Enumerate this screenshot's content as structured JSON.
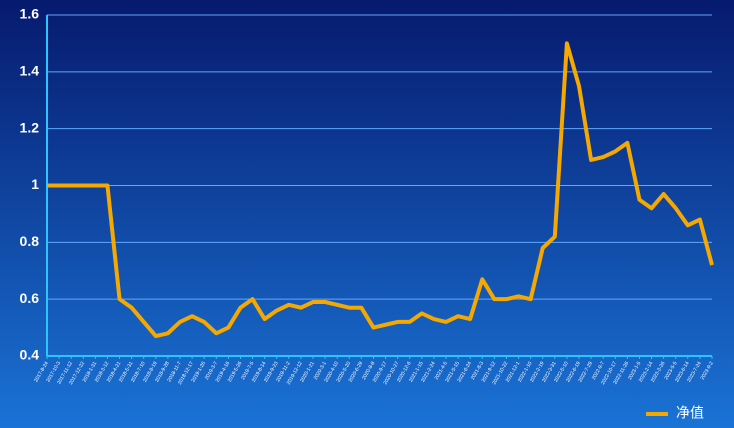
{
  "chart_data": {
    "type": "line",
    "categories": [
      "2017-8-24",
      "2017-10-3",
      "2017-11-12",
      "2017-12-22",
      "2018-1-31",
      "2018-3-12",
      "2018-4-21",
      "2018-5-31",
      "2018-7-10",
      "2018-8-19",
      "2018-9-28",
      "2018-11-7",
      "2018-12-17",
      "2019-1-26",
      "2019-3-7",
      "2019-4-16",
      "2019-5-26",
      "2019-7-5",
      "2019-8-14",
      "2019-9-23",
      "2019-11-2",
      "2019-12-12",
      "2020-1-21",
      "2020-3-1",
      "2020-4-10",
      "2020-5-20",
      "2020-6-29",
      "2020-8-8",
      "2020-9-17",
      "2020-10-27",
      "2020-12-6",
      "2021-1-15",
      "2021-2-24",
      "2021-4-5",
      "2021-5-15",
      "2021-6-24",
      "2021-8-3",
      "2021-9-12",
      "2021-10-22",
      "2021-12-1",
      "2022-1-10",
      "2022-2-19",
      "2022-3-31",
      "2022-5-10",
      "2022-6-19",
      "2022-7-29",
      "2022-9-7",
      "2022-10-17",
      "2022-11-26",
      "2023-1-5",
      "2023-2-14",
      "2023-3-26",
      "2023-5-5",
      "2023-6-14",
      "2023-7-24",
      "2023-9-2"
    ],
    "series": [
      {
        "name": "净值",
        "color": "#f5a800",
        "values": [
          1.0,
          1.0,
          1.0,
          1.0,
          1.0,
          1.0,
          0.6,
          0.57,
          0.52,
          0.47,
          0.48,
          0.52,
          0.54,
          0.52,
          0.48,
          0.5,
          0.57,
          0.6,
          0.53,
          0.56,
          0.58,
          0.57,
          0.59,
          0.59,
          0.58,
          0.57,
          0.57,
          0.5,
          0.51,
          0.52,
          0.52,
          0.55,
          0.53,
          0.52,
          0.54,
          0.53,
          0.67,
          0.6,
          0.6,
          0.61,
          0.6,
          0.78,
          0.82,
          1.5,
          1.35,
          1.09,
          1.1,
          1.12,
          1.15,
          0.95,
          0.92,
          0.97,
          0.92,
          0.86,
          0.88,
          0.72
        ]
      }
    ],
    "ylim": [
      0.4,
      1.6
    ],
    "yticks": [
      0.4,
      0.6,
      0.8,
      1,
      1.2,
      1.4,
      1.6
    ],
    "grid": true,
    "legend": "bottom-right"
  }
}
